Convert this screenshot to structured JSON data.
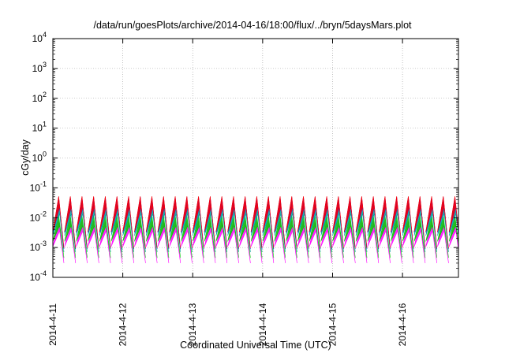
{
  "chart_data": {
    "type": "line",
    "title": "/data/run/goesPlots/archive/2014-04-16/18:00/flux/../bryn/5daysMars.plot",
    "xlabel": "Coordinated Universal Time (UTC)",
    "ylabel": "cGy/day",
    "yscale": "log",
    "ylim": [
      0.0001,
      10000
    ],
    "y_ticks": [
      {
        "base": "10",
        "exp": "-4"
      },
      {
        "base": "10",
        "exp": "-3"
      },
      {
        "base": "10",
        "exp": "-2"
      },
      {
        "base": "10",
        "exp": "-1"
      },
      {
        "base": "10",
        "exp": "0"
      },
      {
        "base": "10",
        "exp": "1"
      },
      {
        "base": "10",
        "exp": "2"
      },
      {
        "base": "10",
        "exp": "3"
      },
      {
        "base": "10",
        "exp": "4"
      }
    ],
    "x_ticks": [
      "2014-4-11",
      "2014-4-12",
      "2014-4-13",
      "2014-4-14",
      "2014-4-15",
      "2014-4-16"
    ],
    "xlim_days": [
      0,
      5.8
    ],
    "grid": true,
    "legend": "none",
    "sawtooth_period_hours": 4,
    "series": [
      {
        "color": "#ff0000",
        "peak": 0.052,
        "trough": 0.00095
      },
      {
        "color": "#0000ff",
        "peak": 0.05,
        "trough": 0.0009
      },
      {
        "color": "#00a0a0",
        "peak": 0.03,
        "trough": 0.0007
      },
      {
        "color": "#00cc00",
        "peak": 0.012,
        "trough": 0.00045
      },
      {
        "color": "#ff00ff",
        "peak": 0.008,
        "trough": 0.0003
      }
    ]
  }
}
